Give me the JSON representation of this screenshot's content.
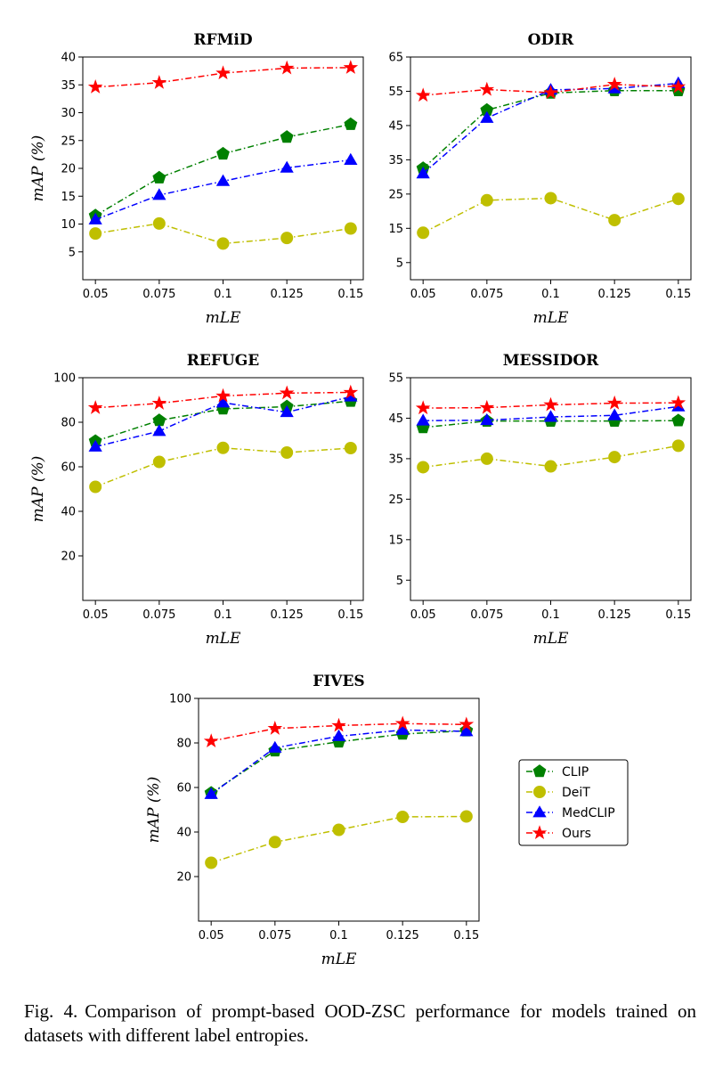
{
  "chart_data": [
    {
      "type": "line",
      "title": "RFMiD",
      "xlabel": "mLE",
      "ylabel": "mAP (%)",
      "categories": [
        "0.05",
        "0.075",
        "0.1",
        "0.125",
        "0.15"
      ],
      "ylim": [
        0,
        40
      ],
      "yticks": [
        5,
        10,
        15,
        20,
        25,
        30,
        35,
        40
      ],
      "grid": false,
      "series": [
        {
          "name": "CLIP",
          "color": "#008000",
          "marker": "pentagon",
          "values": [
            11.5,
            18.3,
            22.6,
            25.6,
            27.9
          ]
        },
        {
          "name": "DeiT",
          "color": "#bfbf00",
          "marker": "circle",
          "values": [
            8.3,
            10.1,
            6.5,
            7.5,
            9.2
          ]
        },
        {
          "name": "MedCLIP",
          "color": "#0000ff",
          "marker": "triangle",
          "values": [
            10.8,
            15.2,
            17.7,
            20.1,
            21.5
          ]
        },
        {
          "name": "Ours",
          "color": "#ff0000",
          "marker": "star",
          "values": [
            34.6,
            35.4,
            37.1,
            38.0,
            38.1
          ]
        }
      ]
    },
    {
      "type": "line",
      "title": "ODIR",
      "xlabel": "mLE",
      "ylabel": "",
      "categories": [
        "0.05",
        "0.075",
        "0.1",
        "0.125",
        "0.15"
      ],
      "ylim": [
        0,
        65
      ],
      "yticks": [
        5,
        15,
        25,
        35,
        45,
        55,
        65
      ],
      "grid": false,
      "series": [
        {
          "name": "CLIP",
          "color": "#008000",
          "marker": "pentagon",
          "values": [
            32.5,
            49.5,
            54.5,
            55.2,
            55.2
          ]
        },
        {
          "name": "DeiT",
          "color": "#bfbf00",
          "marker": "circle",
          "values": [
            13.7,
            23.2,
            23.8,
            17.4,
            23.6
          ]
        },
        {
          "name": "MedCLIP",
          "color": "#0000ff",
          "marker": "triangle",
          "values": [
            31.0,
            47.2,
            55.4,
            55.8,
            57.3
          ]
        },
        {
          "name": "Ours",
          "color": "#ff0000",
          "marker": "star",
          "values": [
            53.8,
            55.5,
            54.6,
            57.0,
            56.3
          ]
        }
      ]
    },
    {
      "type": "line",
      "title": "REFUGE",
      "xlabel": "mLE",
      "ylabel": "mAP (%)",
      "categories": [
        "0.05",
        "0.075",
        "0.1",
        "0.125",
        "0.15"
      ],
      "ylim": [
        0,
        100
      ],
      "yticks": [
        20,
        40,
        60,
        80,
        100
      ],
      "grid": false,
      "series": [
        {
          "name": "CLIP",
          "color": "#008000",
          "marker": "pentagon",
          "values": [
            71.5,
            80.8,
            86.0,
            87.0,
            89.5
          ]
        },
        {
          "name": "DeiT",
          "color": "#bfbf00",
          "marker": "circle",
          "values": [
            51.0,
            62.2,
            68.5,
            66.4,
            68.4
          ]
        },
        {
          "name": "MedCLIP",
          "color": "#0000ff",
          "marker": "triangle",
          "values": [
            69.0,
            76.0,
            88.8,
            84.5,
            91.5
          ]
        },
        {
          "name": "Ours",
          "color": "#ff0000",
          "marker": "star",
          "values": [
            86.5,
            88.5,
            91.8,
            93.1,
            93.4
          ]
        }
      ]
    },
    {
      "type": "line",
      "title": "MESSIDOR",
      "xlabel": "mLE",
      "ylabel": "",
      "categories": [
        "0.05",
        "0.075",
        "0.1",
        "0.125",
        "0.15"
      ],
      "ylim": [
        0,
        55
      ],
      "yticks": [
        5,
        15,
        25,
        35,
        45,
        55
      ],
      "grid": false,
      "series": [
        {
          "name": "CLIP",
          "color": "#008000",
          "marker": "pentagon",
          "values": [
            42.7,
            44.3,
            44.3,
            44.3,
            44.4
          ]
        },
        {
          "name": "DeiT",
          "color": "#bfbf00",
          "marker": "circle",
          "values": [
            32.9,
            35.0,
            33.1,
            35.4,
            38.2
          ]
        },
        {
          "name": "MedCLIP",
          "color": "#0000ff",
          "marker": "triangle",
          "values": [
            44.4,
            44.5,
            45.3,
            45.7,
            47.9
          ]
        },
        {
          "name": "Ours",
          "color": "#ff0000",
          "marker": "star",
          "values": [
            47.5,
            47.6,
            48.3,
            48.7,
            48.8
          ]
        }
      ]
    },
    {
      "type": "line",
      "title": "FIVES",
      "xlabel": "mLE",
      "ylabel": "mAP (%)",
      "categories": [
        "0.05",
        "0.075",
        "0.1",
        "0.125",
        "0.15"
      ],
      "ylim": [
        0,
        100
      ],
      "yticks": [
        20,
        40,
        60,
        80,
        100
      ],
      "grid": false,
      "legend": "right",
      "series": [
        {
          "name": "CLIP",
          "color": "#008000",
          "marker": "pentagon",
          "values": [
            57.5,
            76.5,
            80.5,
            84.0,
            85.5
          ]
        },
        {
          "name": "DeiT",
          "color": "#bfbf00",
          "marker": "circle",
          "values": [
            26.2,
            35.5,
            41.0,
            46.8,
            47.0
          ]
        },
        {
          "name": "MedCLIP",
          "color": "#0000ff",
          "marker": "triangle",
          "values": [
            57.0,
            77.8,
            83.0,
            85.8,
            85.2
          ]
        },
        {
          "name": "Ours",
          "color": "#ff0000",
          "marker": "star",
          "values": [
            80.8,
            86.5,
            87.8,
            88.7,
            88.3
          ]
        }
      ]
    }
  ],
  "caption": {
    "label": "Fig. 4.",
    "text": "Comparison of prompt-based OOD-ZSC performance for models trained on datasets with different label entropies."
  }
}
